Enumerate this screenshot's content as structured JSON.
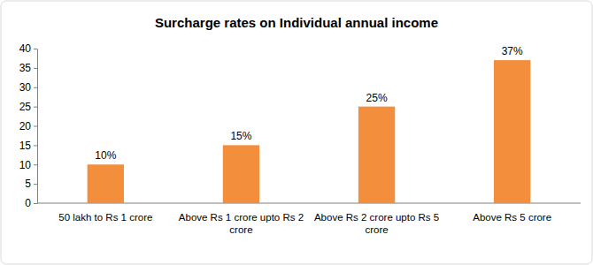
{
  "chart_data": {
    "type": "bar",
    "title": "Surcharge rates on Individual annual income",
    "categories": [
      "50 lakh to Rs 1 crore",
      "Above Rs 1 crore upto Rs 2 crore",
      "Above Rs 2 crore upto Rs 5 crore",
      "Above Rs 5 crore"
    ],
    "values": [
      10,
      15,
      25,
      37
    ],
    "value_labels": [
      "10%",
      "15%",
      "25%",
      "37%"
    ],
    "color": "#f28e3c",
    "ylim": [
      0,
      40
    ],
    "yticks": [
      0,
      5,
      10,
      15,
      20,
      25,
      30,
      35,
      40
    ],
    "grid": false,
    "data_labels": true
  }
}
